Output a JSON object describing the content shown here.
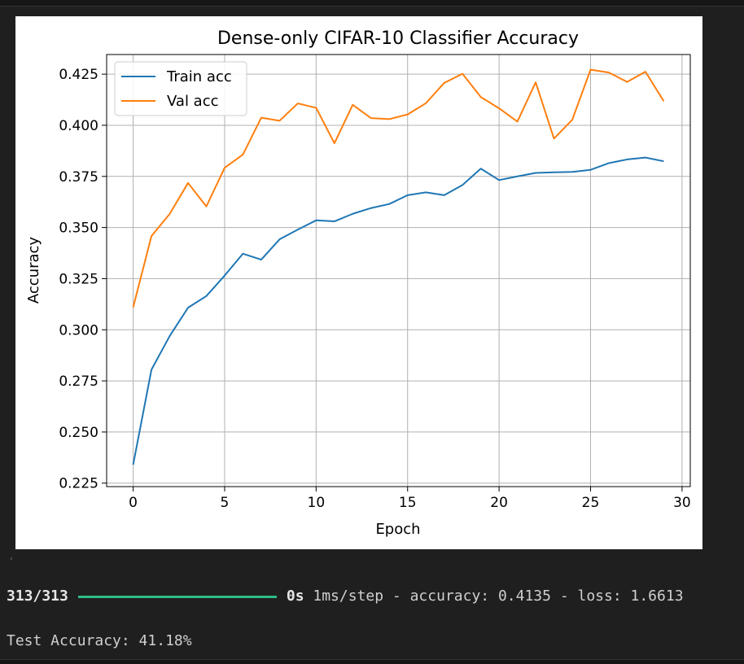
{
  "chart_data": {
    "type": "line",
    "title": "Dense-only CIFAR-10 Classifier Accuracy",
    "xlabel": "Epoch",
    "ylabel": "Accuracy",
    "xlim": [
      -1.45,
      30.45
    ],
    "ylim": [
      0.2233,
      0.4346
    ],
    "xticks": [
      0,
      5,
      10,
      15,
      20,
      25,
      30
    ],
    "yticks": [
      0.225,
      0.25,
      0.275,
      0.3,
      0.325,
      0.35,
      0.375,
      0.4,
      0.425
    ],
    "grid": true,
    "legend_position": "upper-left",
    "x": [
      0,
      1,
      2,
      3,
      4,
      5,
      6,
      7,
      8,
      9,
      10,
      11,
      12,
      13,
      14,
      15,
      16,
      17,
      18,
      19,
      20,
      21,
      22,
      23,
      24,
      25,
      26,
      27,
      28,
      29
    ],
    "series": [
      {
        "name": "Train acc",
        "color": "#1f77b4",
        "values": [
          0.234,
          0.2805,
          0.297,
          0.3108,
          0.3165,
          0.3265,
          0.3372,
          0.3343,
          0.3442,
          0.349,
          0.3535,
          0.353,
          0.3567,
          0.3595,
          0.3615,
          0.3658,
          0.3672,
          0.3658,
          0.3708,
          0.3788,
          0.3732,
          0.375,
          0.3767,
          0.377,
          0.3772,
          0.3782,
          0.3815,
          0.3833,
          0.3842,
          0.3824
        ]
      },
      {
        "name": "Val acc",
        "color": "#ff7f0e",
        "values": [
          0.311,
          0.3458,
          0.3567,
          0.3718,
          0.3603,
          0.3792,
          0.3857,
          0.4037,
          0.4022,
          0.4107,
          0.4085,
          0.3912,
          0.41,
          0.4035,
          0.403,
          0.4053,
          0.4108,
          0.4207,
          0.4252,
          0.4138,
          0.4083,
          0.4018,
          0.421,
          0.3935,
          0.4027,
          0.4272,
          0.4258,
          0.4212,
          0.4262,
          0.4118
        ]
      }
    ]
  },
  "console": {
    "step_count": "313/313",
    "progress_fraction": 1.0,
    "progress_color": "#2ebd85",
    "time": "0s",
    "metrics": " 1ms/step - accuracy: 0.4135 - loss: 1.6613",
    "test_accuracy": "Test Accuracy: 41.18%"
  }
}
